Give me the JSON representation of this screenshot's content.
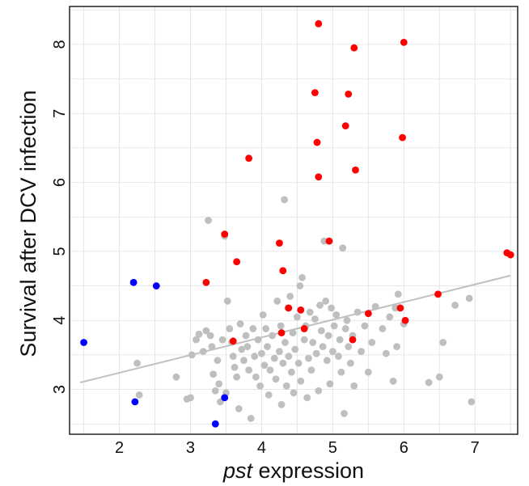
{
  "chart_data": {
    "type": "scatter",
    "title": "",
    "xlabel_italic": "pst",
    "xlabel_rest": " expression",
    "ylabel": "Survival after DCV infection",
    "xlim": [
      1.3,
      7.6
    ],
    "ylim": [
      2.35,
      8.55
    ],
    "x_ticks": [
      2,
      3,
      4,
      5,
      6,
      7
    ],
    "y_ticks": [
      3,
      4,
      5,
      6,
      7,
      8
    ],
    "grid": true,
    "legend": "none",
    "colors": {
      "grey": "#bfbfbf",
      "red": "#ff0000",
      "blue": "#0000ff",
      "trend": "#c0c0c0",
      "grid": "#e6e6e6",
      "axis": "#000000"
    },
    "trend_line": {
      "x": [
        1.45,
        7.5
      ],
      "y": [
        3.1,
        4.65
      ]
    },
    "series": [
      {
        "color_key": "grey",
        "points": [
          [
            2.25,
            3.38
          ],
          [
            2.28,
            2.92
          ],
          [
            2.8,
            3.18
          ],
          [
            2.95,
            2.86
          ],
          [
            3.0,
            2.88
          ],
          [
            3.02,
            3.5
          ],
          [
            3.08,
            3.72
          ],
          [
            3.12,
            3.8
          ],
          [
            3.18,
            3.55
          ],
          [
            3.22,
            3.85
          ],
          [
            3.25,
            5.45
          ],
          [
            3.28,
            3.78
          ],
          [
            3.3,
            3.62
          ],
          [
            3.32,
            3.22
          ],
          [
            3.35,
            2.98
          ],
          [
            3.38,
            3.42
          ],
          [
            3.4,
            3.08
          ],
          [
            3.42,
            2.82
          ],
          [
            3.45,
            3.72
          ],
          [
            3.48,
            5.22
          ],
          [
            3.5,
            2.95
          ],
          [
            3.52,
            4.28
          ],
          [
            3.55,
            3.88
          ],
          [
            3.58,
            3.68
          ],
          [
            3.6,
            3.48
          ],
          [
            3.62,
            3.32
          ],
          [
            3.65,
            3.18
          ],
          [
            3.68,
            2.72
          ],
          [
            3.7,
            3.95
          ],
          [
            3.72,
            3.58
          ],
          [
            3.75,
            3.42
          ],
          [
            3.78,
            3.78
          ],
          [
            3.8,
            3.62
          ],
          [
            3.82,
            3.28
          ],
          [
            3.85,
            2.58
          ],
          [
            3.88,
            3.88
          ],
          [
            3.9,
            3.48
          ],
          [
            3.92,
            3.18
          ],
          [
            3.95,
            3.72
          ],
          [
            3.98,
            3.05
          ],
          [
            4.0,
            3.52
          ],
          [
            4.02,
            4.08
          ],
          [
            4.04,
            3.35
          ],
          [
            4.06,
            3.88
          ],
          [
            4.08,
            3.62
          ],
          [
            4.1,
            2.92
          ],
          [
            4.12,
            3.28
          ],
          [
            4.15,
            3.78
          ],
          [
            4.18,
            3.45
          ],
          [
            4.2,
            3.15
          ],
          [
            4.22,
            4.28
          ],
          [
            4.25,
            3.55
          ],
          [
            4.27,
            3.92
          ],
          [
            4.28,
            2.78
          ],
          [
            4.3,
            3.38
          ],
          [
            4.32,
            5.75
          ],
          [
            4.33,
            3.68
          ],
          [
            4.35,
            3.05
          ],
          [
            4.37,
            4.18
          ],
          [
            4.38,
            3.48
          ],
          [
            4.4,
            4.35
          ],
          [
            4.42,
            3.25
          ],
          [
            4.44,
            3.82
          ],
          [
            4.45,
            2.95
          ],
          [
            4.47,
            3.58
          ],
          [
            4.5,
            4.05
          ],
          [
            4.52,
            3.38
          ],
          [
            4.54,
            4.5
          ],
          [
            4.55,
            3.12
          ],
          [
            4.57,
            4.62
          ],
          [
            4.6,
            3.72
          ],
          [
            4.62,
            3.92
          ],
          [
            4.64,
            2.88
          ],
          [
            4.66,
            3.45
          ],
          [
            4.68,
            4.12
          ],
          [
            4.7,
            3.28
          ],
          [
            4.72,
            3.68
          ],
          [
            4.75,
            4.02
          ],
          [
            4.77,
            3.52
          ],
          [
            4.8,
            2.98
          ],
          [
            4.82,
            4.22
          ],
          [
            4.84,
            3.85
          ],
          [
            4.86,
            3.62
          ],
          [
            4.88,
            5.15
          ],
          [
            4.9,
            4.28
          ],
          [
            4.92,
            3.42
          ],
          [
            4.94,
            3.78
          ],
          [
            4.96,
            3.08
          ],
          [
            4.98,
            4.18
          ],
          [
            5.0,
            3.55
          ],
          [
            5.02,
            3.92
          ],
          [
            5.05,
            4.08
          ],
          [
            5.08,
            3.48
          ],
          [
            5.1,
            3.72
          ],
          [
            5.12,
            3.25
          ],
          [
            5.14,
            5.05
          ],
          [
            5.16,
            2.65
          ],
          [
            5.18,
            3.88
          ],
          [
            5.2,
            4.0
          ],
          [
            5.22,
            3.62
          ],
          [
            5.25,
            3.38
          ],
          [
            5.28,
            3.78
          ],
          [
            5.3,
            3.05
          ],
          [
            5.35,
            4.12
          ],
          [
            5.4,
            3.55
          ],
          [
            5.45,
            3.92
          ],
          [
            5.5,
            3.25
          ],
          [
            5.55,
            3.68
          ],
          [
            5.6,
            4.2
          ],
          [
            5.7,
            3.88
          ],
          [
            5.75,
            3.52
          ],
          [
            5.8,
            4.05
          ],
          [
            5.85,
            3.12
          ],
          [
            5.88,
            4.18
          ],
          [
            5.9,
            3.62
          ],
          [
            5.92,
            4.38
          ],
          [
            6.0,
            3.95
          ],
          [
            6.35,
            3.1
          ],
          [
            6.5,
            3.18
          ],
          [
            6.55,
            3.68
          ],
          [
            6.72,
            4.22
          ],
          [
            6.92,
            4.32
          ],
          [
            6.95,
            2.82
          ]
        ]
      },
      {
        "color_key": "red",
        "points": [
          [
            3.22,
            4.55
          ],
          [
            3.48,
            5.25
          ],
          [
            3.6,
            3.7
          ],
          [
            3.65,
            4.85
          ],
          [
            3.82,
            6.35
          ],
          [
            4.25,
            5.12
          ],
          [
            4.28,
            3.82
          ],
          [
            4.3,
            4.72
          ],
          [
            4.38,
            4.18
          ],
          [
            4.55,
            4.15
          ],
          [
            4.6,
            3.88
          ],
          [
            4.75,
            7.3
          ],
          [
            4.78,
            6.58
          ],
          [
            4.8,
            6.08
          ],
          [
            4.8,
            8.3
          ],
          [
            4.95,
            5.15
          ],
          [
            5.18,
            6.82
          ],
          [
            5.22,
            7.28
          ],
          [
            5.28,
            3.72
          ],
          [
            5.3,
            7.95
          ],
          [
            5.32,
            6.18
          ],
          [
            5.5,
            4.1
          ],
          [
            5.95,
            4.18
          ],
          [
            5.98,
            6.65
          ],
          [
            6.0,
            8.03
          ],
          [
            6.02,
            4.0
          ],
          [
            6.48,
            4.38
          ],
          [
            7.45,
            4.98
          ],
          [
            7.5,
            4.95
          ]
        ]
      },
      {
        "color_key": "blue",
        "points": [
          [
            1.5,
            3.68
          ],
          [
            2.2,
            4.55
          ],
          [
            2.22,
            2.82
          ],
          [
            2.52,
            4.5
          ],
          [
            3.35,
            2.5
          ],
          [
            3.48,
            2.88
          ]
        ]
      }
    ]
  }
}
